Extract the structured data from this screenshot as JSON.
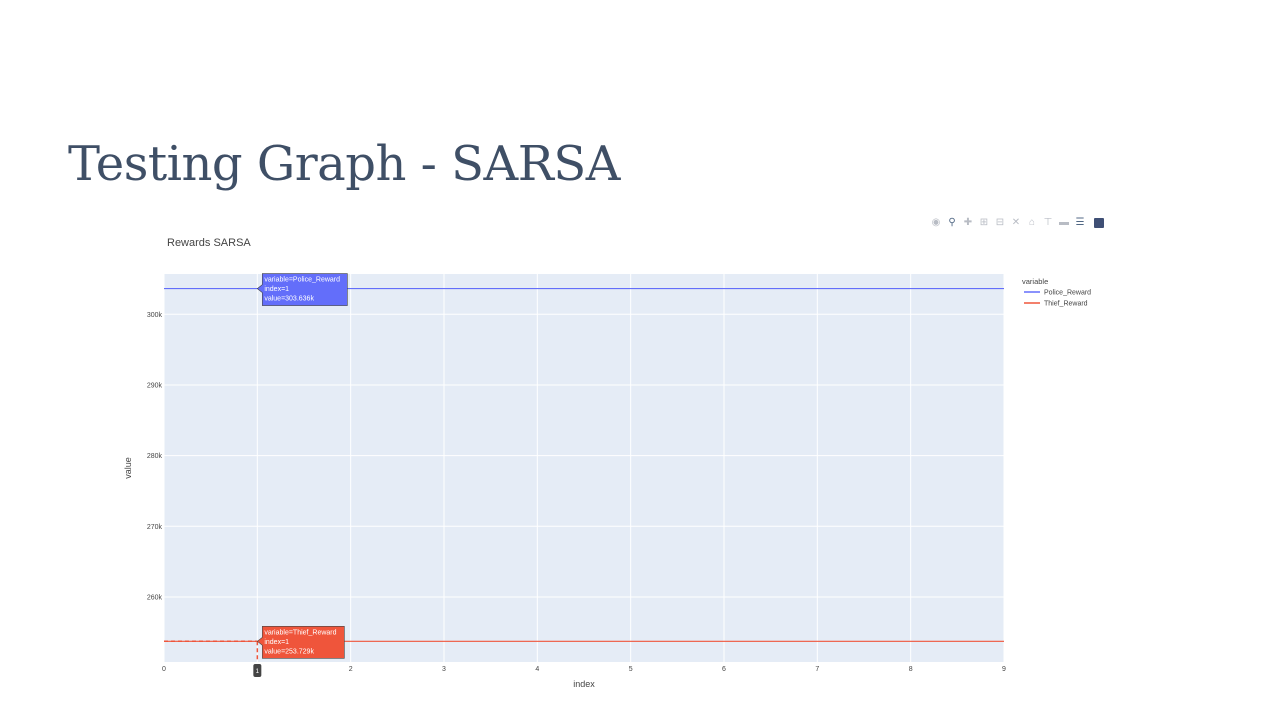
{
  "slide": {
    "title": "Testing Graph - SARSA"
  },
  "modebar": {
    "icons": [
      "camera-icon",
      "zoom-icon",
      "pan-icon",
      "zoom-in-icon",
      "zoom-out-icon",
      "autoscale-icon",
      "home-icon",
      "spike-lines-icon",
      "hover-closest-icon",
      "hover-compare-icon",
      "plotly-logo-icon"
    ]
  },
  "chart_data": {
    "type": "line",
    "title": "Rewards SARSA",
    "xlabel": "index",
    "ylabel": "value",
    "xlim": [
      0,
      9
    ],
    "ylim": [
      250800,
      305700
    ],
    "x_ticks": [
      0,
      1,
      2,
      3,
      4,
      5,
      6,
      7,
      8,
      9
    ],
    "x_tick_labels": [
      "0",
      "1",
      "2",
      "3",
      "4",
      "5",
      "6",
      "7",
      "8",
      "9"
    ],
    "y_ticks": [
      260000,
      270000,
      280000,
      290000,
      300000
    ],
    "y_tick_labels": [
      "260k",
      "270k",
      "280k",
      "290k",
      "300k"
    ],
    "grid": true,
    "legend": {
      "title": "variable",
      "placement": "right"
    },
    "x": [
      0,
      1,
      2,
      3,
      4,
      5,
      6,
      7,
      8,
      9
    ],
    "series": [
      {
        "name": "Police_Reward",
        "color": "#636efa",
        "values": [
          303636,
          303636,
          303636,
          303636,
          303636,
          303636,
          303636,
          303636,
          303636,
          303636
        ]
      },
      {
        "name": "Thief_Reward",
        "color": "#ef553b",
        "values": [
          253729,
          253729,
          253729,
          253729,
          253729,
          253729,
          253729,
          253729,
          253729,
          253729
        ]
      }
    ],
    "hover": {
      "x_value": 1,
      "x_label": "1",
      "labels": [
        {
          "series": 0,
          "lines": [
            "variable=Police_Reward",
            "index=1",
            "value=303.636k"
          ]
        },
        {
          "series": 1,
          "lines": [
            "variable=Thief_Reward",
            "index=1",
            "value=253.729k"
          ]
        }
      ]
    }
  }
}
